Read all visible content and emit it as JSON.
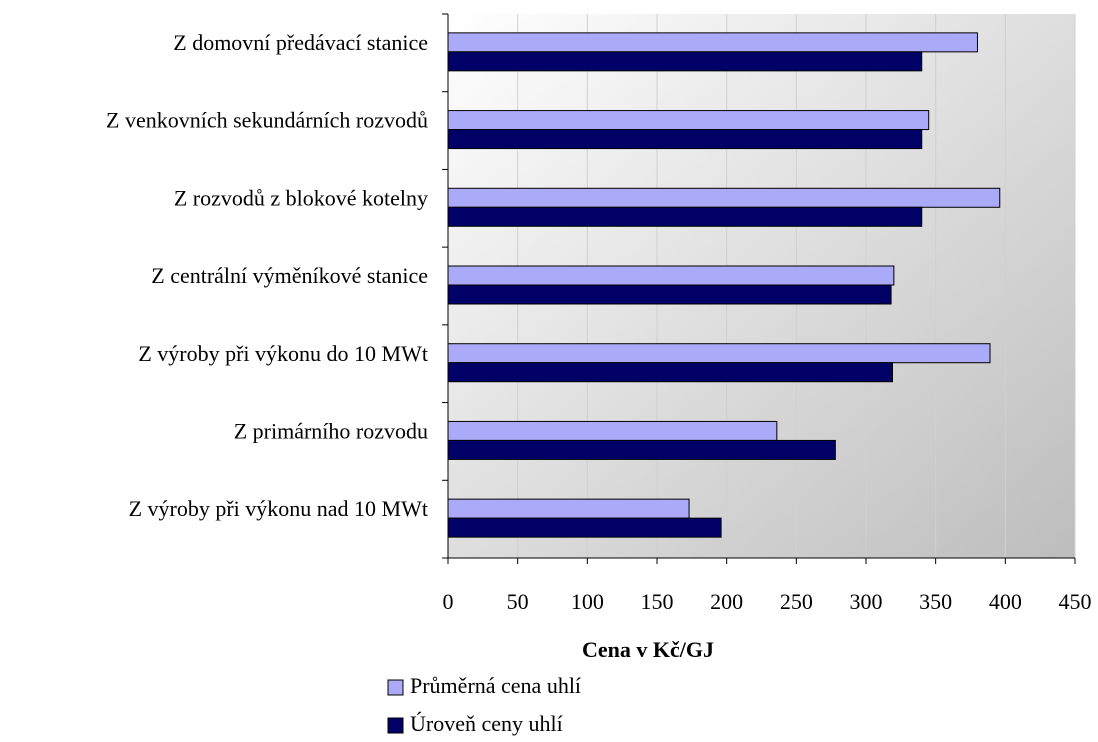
{
  "chart_data": {
    "type": "bar",
    "orientation": "horizontal",
    "xlabel": "Cena v Kč/GJ",
    "categories": [
      "Z domovní předávací stanice",
      "Z venkovních sekundárních rozvodů",
      "Z rozvodů z blokové kotelny",
      "Z centrální výměníkové stanice",
      "Z výroby při výkonu do 10 MWt",
      "Z primárního rozvodu",
      "Z výroby při výkonu nad 10 MWt"
    ],
    "series": [
      {
        "name": "Průměrná cena uhlí",
        "color": "#aaaaf8",
        "values": [
          380,
          345,
          396,
          320,
          389,
          236,
          173
        ]
      },
      {
        "name": "Úroveň ceny uhlí",
        "color": "#000066",
        "values": [
          340,
          340,
          340,
          318,
          319,
          278,
          196
        ]
      }
    ],
    "xlim": [
      0,
      450
    ],
    "xticks": [
      0,
      50,
      100,
      150,
      200,
      250,
      300,
      350,
      400,
      450
    ],
    "grid": true,
    "legend": "bottom"
  }
}
